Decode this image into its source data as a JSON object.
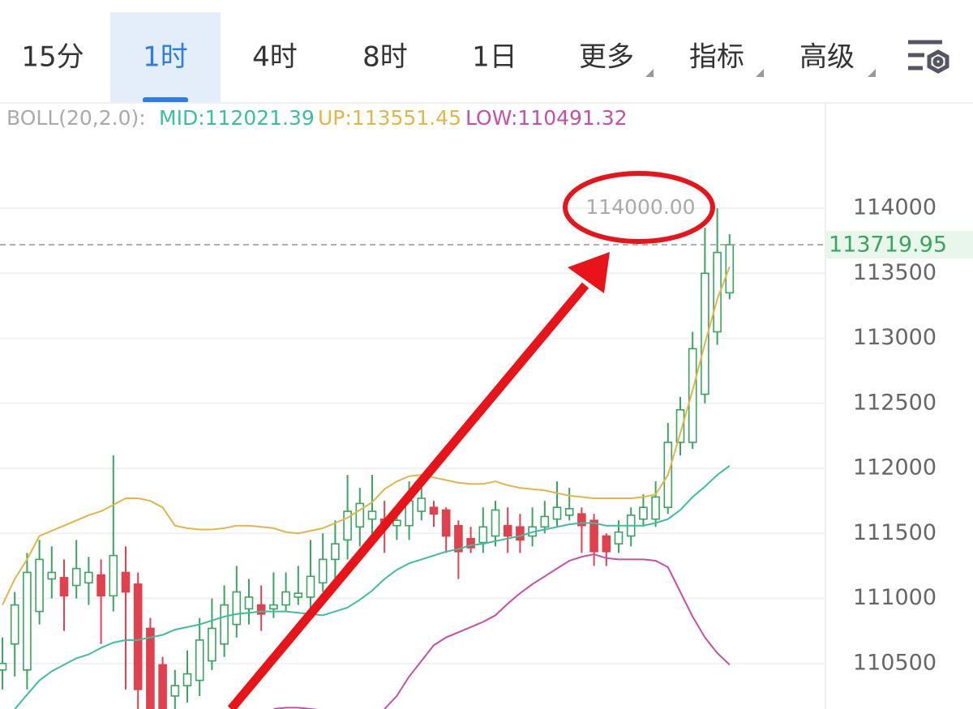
{
  "tabs": [
    "15分",
    "1时",
    "4时",
    "8时",
    "1日",
    "更多",
    "指标",
    "高级"
  ],
  "active_tab": 1,
  "chart_data": {
    "type": "candlestick",
    "indicator": "BOLL(20,2.0):",
    "up_color": "#3aa55e",
    "down_color": "#e0414f",
    "open": [
      110450,
      110650,
      110450,
      110900,
      111150,
      111160,
      111100,
      111120,
      111180,
      111020,
      111200,
      111110,
      110770,
      110490,
      110250,
      110330,
      110370,
      110520,
      110650,
      110800,
      110920,
      110950,
      110920,
      110950,
      111010,
      111010,
      111120,
      111300,
      111450,
      111550,
      111610,
      111610,
      111560,
      111560,
      111670,
      111700,
      111680,
      111560,
      111460,
      111430,
      111480,
      111560,
      111550,
      111480,
      111550,
      111610,
      111640,
      111650,
      111600,
      111480,
      111420,
      111480,
      111610,
      111610,
      111700,
      112200,
      112200,
      112570,
      113050,
      113350
    ],
    "high": [
      110700,
      111050,
      111350,
      111450,
      111400,
      111300,
      111450,
      111320,
      111300,
      112100,
      111400,
      111200,
      110850,
      110550,
      110450,
      110600,
      110850,
      111000,
      111100,
      111250,
      111150,
      111100,
      111200,
      111200,
      111250,
      111450,
      111500,
      111600,
      111950,
      111850,
      111950,
      111750,
      111700,
      111900,
      111950,
      111750,
      111700,
      111600,
      111550,
      111700,
      111750,
      111700,
      111650,
      111700,
      111750,
      111900,
      111850,
      111700,
      111650,
      111500,
      111600,
      111700,
      111800,
      111900,
      112350,
      112550,
      113050,
      113850,
      114000,
      113800
    ],
    "low": [
      110300,
      110400,
      110300,
      110800,
      111000,
      110750,
      111000,
      110950,
      110650,
      110900,
      110300,
      110000,
      110100,
      110100,
      110150,
      110200,
      110250,
      110450,
      110550,
      110700,
      110800,
      110750,
      110850,
      110900,
      110950,
      110900,
      111050,
      111150,
      111300,
      111400,
      111450,
      111350,
      111450,
      111450,
      111600,
      111550,
      111350,
      111150,
      111350,
      111350,
      111400,
      111350,
      111350,
      111400,
      111500,
      111550,
      111600,
      111350,
      111250,
      111250,
      111350,
      111400,
      111550,
      111550,
      111650,
      112100,
      112150,
      112500,
      112950,
      113300
    ],
    "close": [
      110500,
      110950,
      111200,
      111300,
      111200,
      111020,
      111230,
      111200,
      111020,
      111330,
      111050,
      110300,
      110150,
      110150,
      110330,
      110420,
      110680,
      110770,
      110950,
      111050,
      111010,
      110880,
      110950,
      111050,
      111040,
      111170,
      111300,
      111420,
      111670,
      111730,
      111670,
      111550,
      111600,
      111750,
      111770,
      111650,
      111480,
      111360,
      111390,
      111550,
      111680,
      111480,
      111450,
      111550,
      111630,
      111700,
      111690,
      111560,
      111360,
      111360,
      111510,
      111640,
      111700,
      111780,
      112200,
      112450,
      112920,
      113500,
      113660,
      113719.95
    ],
    "series": [
      {
        "name": "MID:112021.39",
        "color": "#3cbf9f",
        "values": [
          null,
          110150,
          110260,
          110370,
          110440,
          110490,
          110540,
          110570,
          110620,
          110660,
          110680,
          110680,
          110700,
          110720,
          110760,
          110780,
          110800,
          110830,
          110860,
          110880,
          110890,
          110900,
          110900,
          110900,
          110890,
          110880,
          110870,
          110900,
          110930,
          110990,
          111060,
          111150,
          111220,
          111270,
          111300,
          111330,
          111360,
          111380,
          111410,
          111420,
          111440,
          111460,
          111480,
          111510,
          111530,
          111550,
          111570,
          111580,
          111580,
          111560,
          111560,
          111560,
          111560,
          111580,
          111610,
          111680,
          111780,
          111860,
          111950,
          112020
        ]
      },
      {
        "name": "UP:113551.45",
        "color": "#e3b54a",
        "values": [
          110950,
          111150,
          111300,
          111480,
          111520,
          111560,
          111600,
          111640,
          111670,
          111720,
          111770,
          111770,
          111750,
          111700,
          111560,
          111540,
          111530,
          111530,
          111540,
          111560,
          111560,
          111550,
          111540,
          111510,
          111500,
          111520,
          111540,
          111580,
          111620,
          111680,
          111740,
          111840,
          111900,
          111940,
          111950,
          111930,
          111910,
          111890,
          111880,
          111880,
          111900,
          111870,
          111850,
          111840,
          111830,
          111810,
          111790,
          111780,
          111770,
          111770,
          111770,
          111770,
          111780,
          111800,
          111950,
          112270,
          112600,
          112960,
          113300,
          113550
        ]
      },
      {
        "name": "LOW:110491.32",
        "color": "#c74fa6",
        "values": [
          null,
          null,
          null,
          null,
          null,
          null,
          null,
          null,
          null,
          null,
          null,
          null,
          null,
          null,
          null,
          null,
          null,
          null,
          null,
          null,
          null,
          null,
          110150,
          110160,
          110160,
          110150,
          110140,
          null,
          null,
          null,
          null,
          110150,
          110250,
          110400,
          110520,
          110640,
          110700,
          110740,
          110780,
          110820,
          110870,
          110960,
          111040,
          111110,
          111170,
          111230,
          111290,
          111320,
          111340,
          111310,
          111300,
          111300,
          111300,
          111290,
          111240,
          111050,
          110860,
          110700,
          110580,
          110490
        ]
      }
    ],
    "ylim": [
      110150,
      114810
    ],
    "yticks": [
      110500,
      111000,
      111500,
      112000,
      112500,
      113000,
      113500,
      114000
    ],
    "grid": true,
    "last_price": 113719.95,
    "high_annotation": "114000.00"
  }
}
